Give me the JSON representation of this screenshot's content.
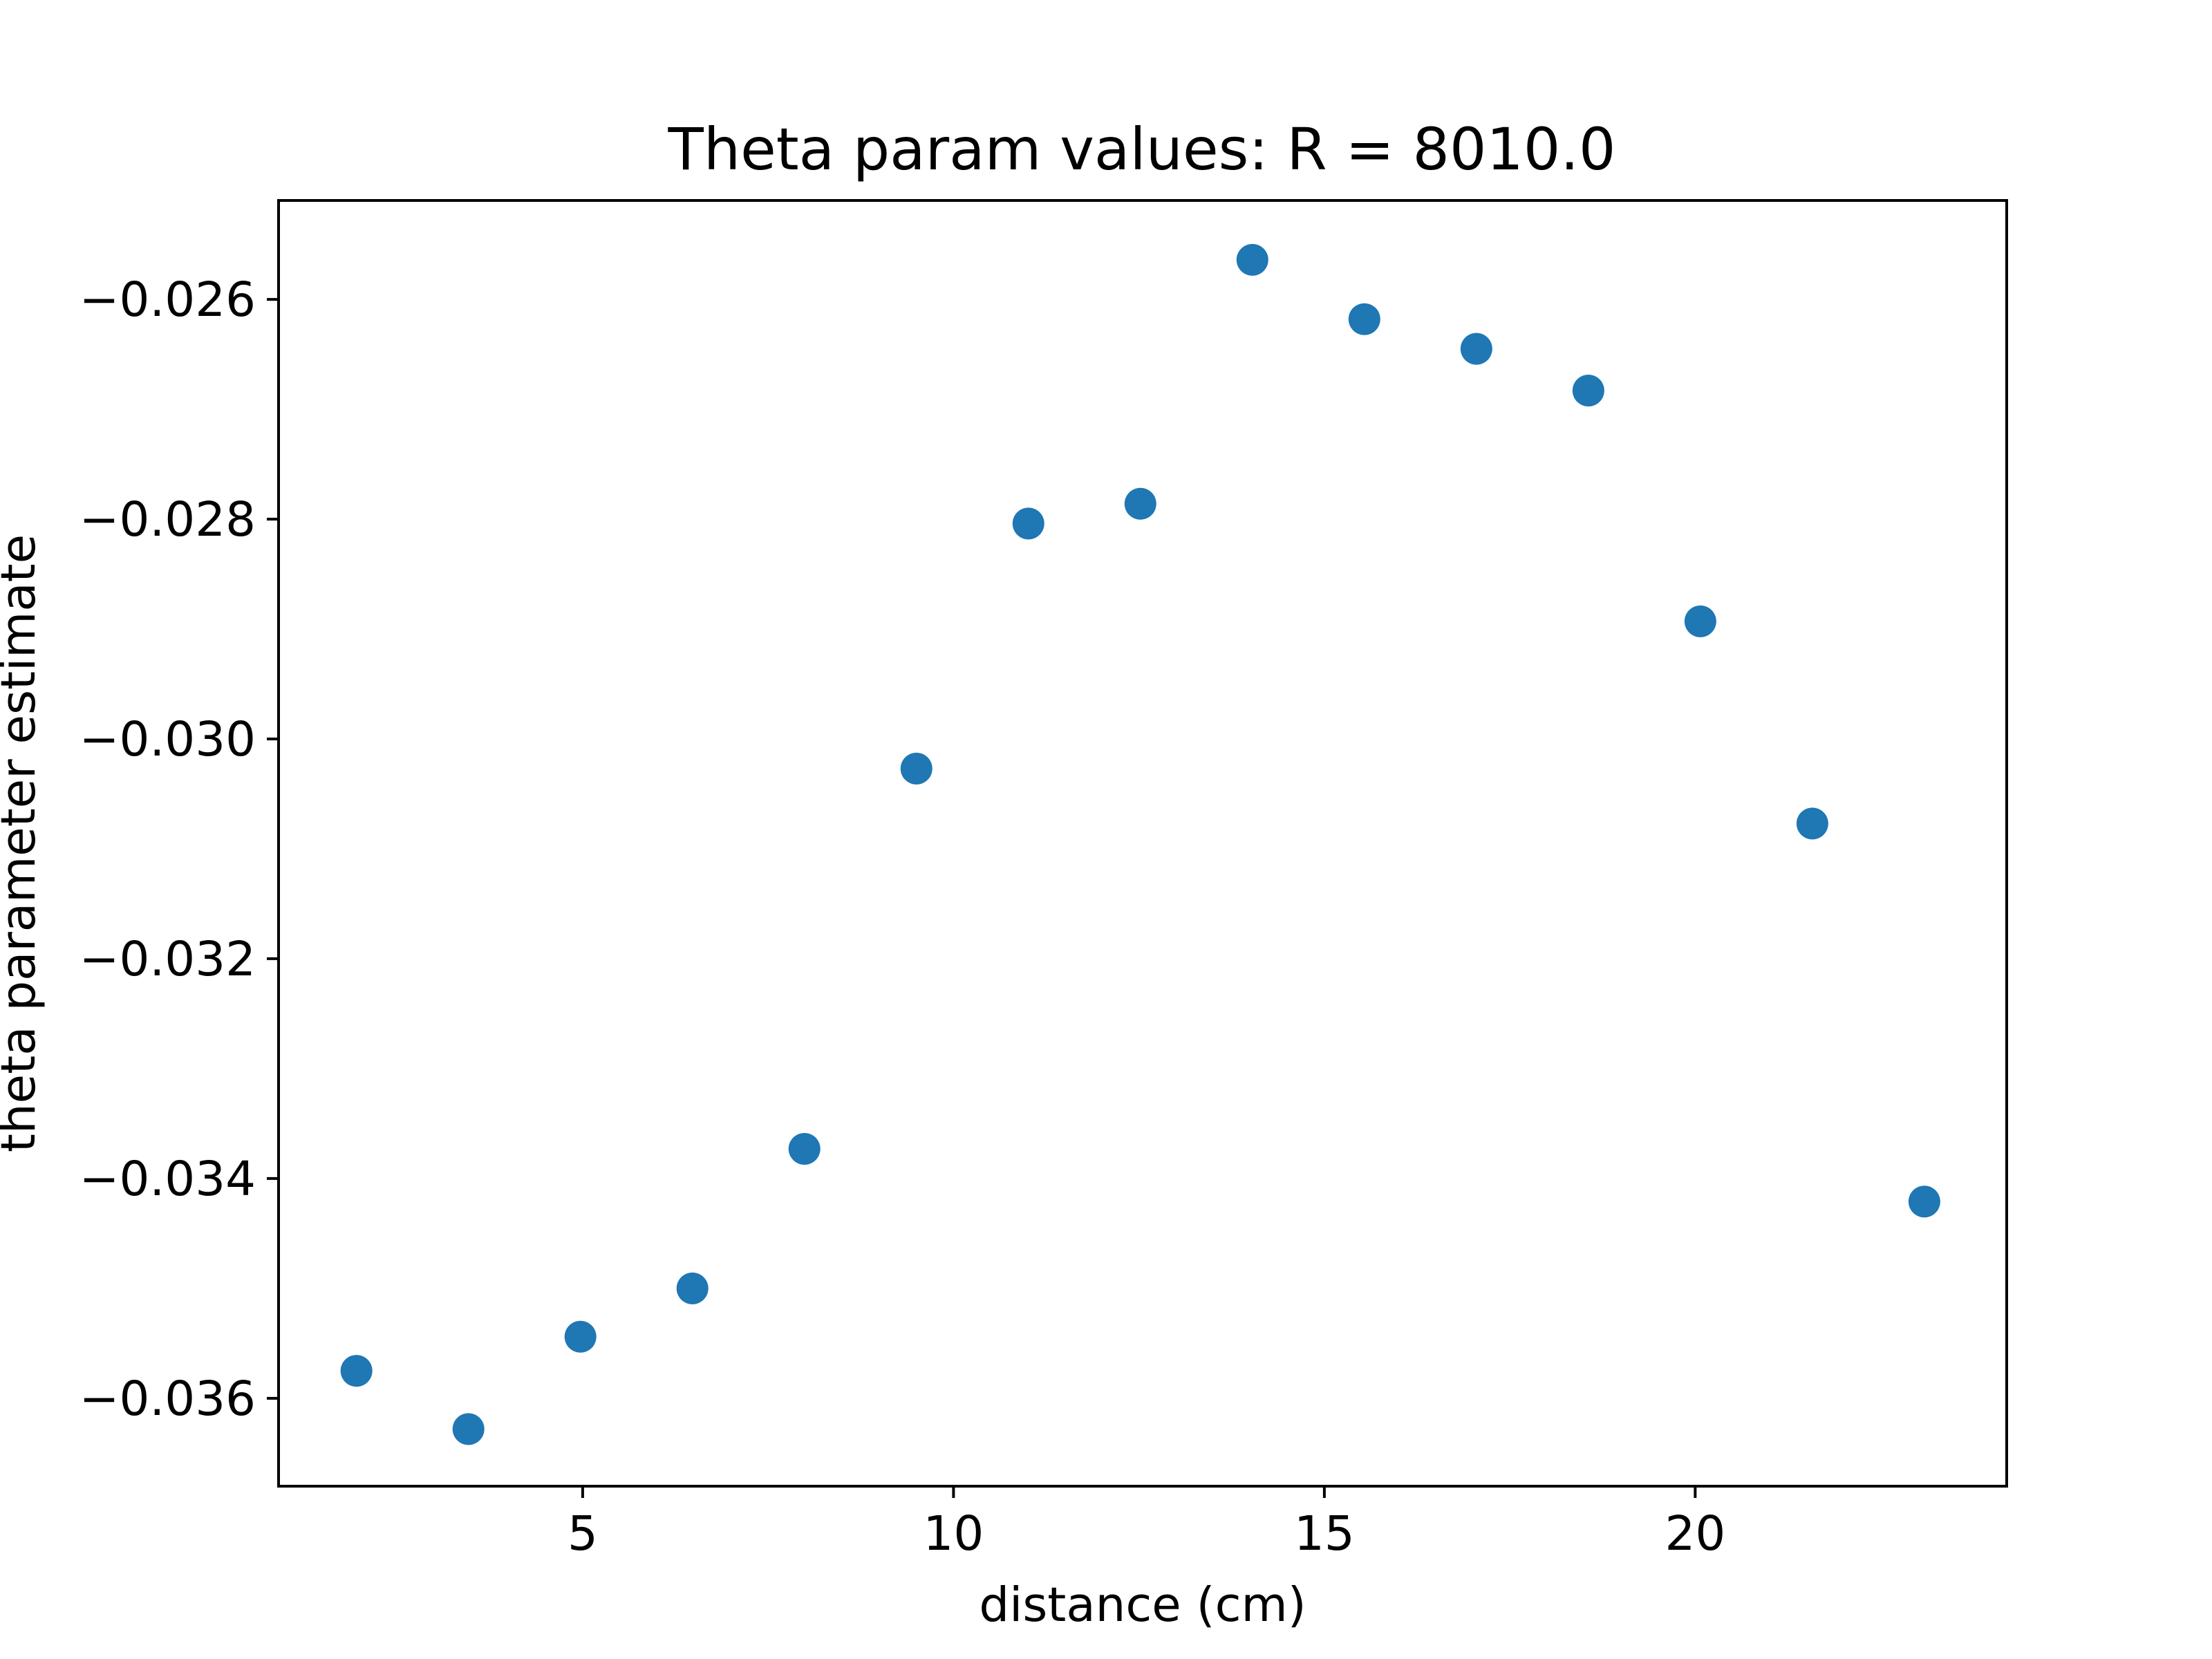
{
  "chart_data": {
    "type": "scatter",
    "title": "Theta param values: R = 8010.0",
    "xlabel": "distance (cm)",
    "ylabel": "theta parameter estimate",
    "xlim": [
      0.9,
      24.2
    ],
    "ylim": [
      -0.0368,
      -0.0251
    ],
    "xticks": [
      5,
      10,
      15,
      20
    ],
    "xtick_labels": [
      "5",
      "10",
      "15",
      "20"
    ],
    "yticks": [
      -0.026,
      -0.028,
      -0.03,
      -0.032,
      -0.034,
      -0.036
    ],
    "ytick_labels": [
      "−0.026",
      "−0.028",
      "−0.030",
      "−0.032",
      "−0.034",
      "−0.036"
    ],
    "grid": false,
    "legend": false,
    "marker_color": "#1f77b4",
    "series": [
      {
        "x": [
          1.95,
          3.46,
          4.97,
          6.48,
          7.99,
          9.5,
          11.01,
          12.52,
          14.03,
          15.54,
          17.05,
          18.56,
          20.07,
          21.58,
          23.09
        ],
        "y": [
          -0.03575,
          -0.03628,
          -0.03544,
          -0.035,
          -0.03373,
          -0.03027,
          -0.02804,
          -0.02786,
          -0.02564,
          -0.02618,
          -0.02645,
          -0.02683,
          -0.02893,
          -0.03077,
          -0.03421
        ]
      }
    ]
  }
}
